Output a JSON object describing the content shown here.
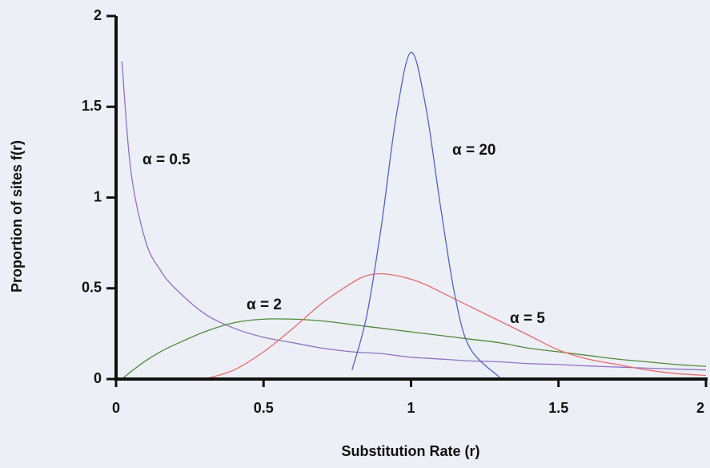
{
  "chart_data": {
    "type": "line",
    "x_label": "Substitution Rate (r)",
    "y_label": "Proportion of sites f(r)",
    "x": [
      0.02,
      0.05,
      0.1,
      0.15,
      0.2,
      0.3,
      0.4,
      0.5,
      0.6,
      0.7,
      0.8,
      0.85,
      0.9,
      0.95,
      1.0,
      1.05,
      1.1,
      1.15,
      1.2,
      1.3,
      1.4,
      1.5,
      1.6,
      1.7,
      1.8,
      1.9,
      2.0
    ],
    "series": [
      {
        "name": "α = 0.5",
        "color": "#8f72c4",
        "values": [
          1.75,
          1.15,
          0.76,
          0.6,
          0.5,
          0.36,
          0.28,
          0.23,
          0.2,
          0.17,
          0.15,
          0.145,
          0.14,
          0.13,
          0.12,
          0.115,
          0.11,
          0.105,
          0.1,
          0.095,
          0.085,
          0.08,
          0.072,
          0.066,
          0.06,
          0.055,
          0.05
        ]
      },
      {
        "name": "α = 2",
        "color": "#4f8a3a",
        "values": [
          0.0,
          0.04,
          0.1,
          0.15,
          0.19,
          0.26,
          0.31,
          0.33,
          0.33,
          0.32,
          0.3,
          0.29,
          0.28,
          0.27,
          0.26,
          0.25,
          0.24,
          0.23,
          0.22,
          0.2,
          0.17,
          0.15,
          0.13,
          0.11,
          0.095,
          0.08,
          0.07
        ]
      },
      {
        "name": "α = 5",
        "color": "#e86a6a",
        "values": [
          null,
          null,
          null,
          null,
          null,
          0.0,
          0.05,
          0.15,
          0.28,
          0.42,
          0.53,
          0.57,
          0.58,
          0.57,
          0.55,
          0.52,
          0.48,
          0.44,
          0.4,
          0.32,
          0.24,
          0.16,
          0.11,
          0.08,
          0.05,
          0.03,
          0.02
        ]
      },
      {
        "name": "α = 20",
        "color": "#5262c4",
        "values": [
          null,
          null,
          null,
          null,
          null,
          null,
          null,
          null,
          null,
          null,
          0.05,
          0.35,
          0.85,
          1.45,
          1.8,
          1.5,
          0.95,
          0.45,
          0.17,
          0.01,
          null,
          null,
          null,
          null,
          null,
          null,
          null
        ]
      }
    ],
    "xlim": [
      0,
      2
    ],
    "ylim": [
      0,
      2
    ],
    "xticks": [
      0,
      0.5,
      1,
      1.5,
      2
    ],
    "yticks": [
      0,
      0.5,
      1,
      1.5,
      2
    ]
  }
}
